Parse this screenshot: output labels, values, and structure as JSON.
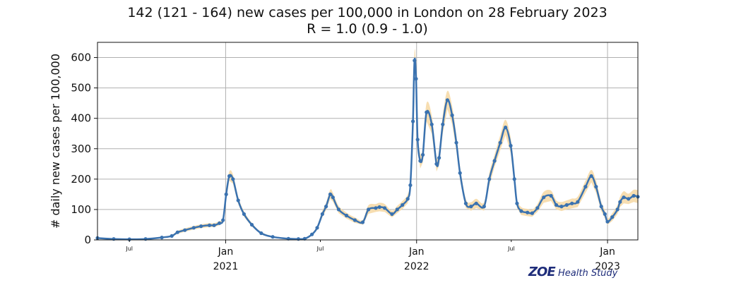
{
  "title_line1": "142 (121 - 164) new cases per 100,000 in London on 28 February 2023",
  "title_line2": "R = 1.0 (0.9 - 1.0)",
  "brand": {
    "logo_text": "ZOE",
    "suffix": "Health Study"
  },
  "colors": {
    "line": "#3a72b0",
    "ci_band": "#f6d8a3",
    "grid": "#b0b0b0"
  },
  "chart_data": {
    "type": "line",
    "xlabel": "",
    "ylabel": "# daily new cases per 100,000",
    "ylim": [
      0,
      650
    ],
    "xlim": [
      "2020-05-01",
      "2023-02-28"
    ],
    "yticks": [
      0,
      100,
      200,
      300,
      400,
      500,
      600
    ],
    "xticks_major": [
      {
        "date": "2021-01-01",
        "label": "Jan",
        "year": "2021"
      },
      {
        "date": "2022-01-01",
        "label": "Jan",
        "year": "2022"
      },
      {
        "date": "2023-01-01",
        "label": "Jan",
        "year": "2023"
      }
    ],
    "xticks_minor": [
      {
        "date": "2020-07-01",
        "label": "Jul"
      },
      {
        "date": "2021-07-01",
        "label": "Jul"
      },
      {
        "date": "2022-07-01",
        "label": "Jul"
      }
    ],
    "grid": true,
    "series": [
      {
        "x": [
          "2020-05-01",
          "2020-06-01",
          "2020-07-01",
          "2020-08-01",
          "2020-09-01",
          "2020-09-20",
          "2020-10-01",
          "2020-10-15",
          "2020-11-01",
          "2020-11-15",
          "2020-12-01",
          "2020-12-10",
          "2020-12-20",
          "2020-12-27",
          "2021-01-02",
          "2021-01-08",
          "2021-01-15",
          "2021-01-25",
          "2021-02-05",
          "2021-02-20",
          "2021-03-10",
          "2021-04-01",
          "2021-05-01",
          "2021-05-20",
          "2021-06-01",
          "2021-06-15",
          "2021-06-25",
          "2021-07-05",
          "2021-07-12",
          "2021-07-20",
          "2021-07-25",
          "2021-08-05",
          "2021-08-20",
          "2021-09-05",
          "2021-09-20",
          "2021-10-01",
          "2021-10-15",
          "2021-10-22",
          "2021-11-01",
          "2021-11-15",
          "2021-11-25",
          "2021-12-05",
          "2021-12-15",
          "2021-12-20",
          "2021-12-25",
          "2021-12-28",
          "2021-12-31",
          "2022-01-03",
          "2022-01-08",
          "2022-01-13",
          "2022-01-20",
          "2022-01-30",
          "2022-02-08",
          "2022-02-13",
          "2022-02-20",
          "2022-03-01",
          "2022-03-10",
          "2022-03-18",
          "2022-03-25",
          "2022-04-05",
          "2022-04-15",
          "2022-04-25",
          "2022-05-10",
          "2022-05-20",
          "2022-05-30",
          "2022-06-10",
          "2022-06-20",
          "2022-06-30",
          "2022-07-07",
          "2022-07-12",
          "2022-07-20",
          "2022-08-01",
          "2022-08-10",
          "2022-08-20",
          "2022-09-01",
          "2022-09-15",
          "2022-09-25",
          "2022-10-05",
          "2022-10-15",
          "2022-10-25",
          "2022-11-05",
          "2022-11-20",
          "2022-12-01",
          "2022-12-10",
          "2022-12-20",
          "2022-12-27",
          "2023-01-01",
          "2023-01-10",
          "2023-01-20",
          "2023-01-25",
          "2023-02-01",
          "2023-02-10",
          "2023-02-20",
          "2023-02-28"
        ],
        "y": [
          6,
          3,
          2,
          3,
          8,
          13,
          25,
          32,
          40,
          45,
          48,
          48,
          55,
          65,
          150,
          210,
          200,
          130,
          85,
          50,
          22,
          10,
          4,
          3,
          4,
          18,
          40,
          85,
          110,
          150,
          140,
          100,
          80,
          65,
          58,
          100,
          105,
          108,
          105,
          85,
          100,
          115,
          135,
          180,
          390,
          590,
          530,
          330,
          260,
          280,
          420,
          380,
          250,
          270,
          380,
          460,
          410,
          320,
          220,
          120,
          110,
          120,
          110,
          200,
          260,
          320,
          370,
          310,
          200,
          120,
          95,
          90,
          88,
          105,
          140,
          145,
          115,
          110,
          115,
          120,
          125,
          175,
          210,
          175,
          110,
          85,
          60,
          75,
          100,
          125,
          140,
          135,
          145,
          142
        ],
        "ci_low": [
          4,
          2,
          1,
          2,
          6,
          10,
          20,
          27,
          34,
          39,
          42,
          42,
          48,
          56,
          135,
          195,
          185,
          118,
          76,
          44,
          18,
          8,
          3,
          2,
          3,
          14,
          33,
          75,
          98,
          135,
          126,
          88,
          70,
          56,
          50,
          86,
          92,
          94,
          92,
          74,
          88,
          102,
          120,
          160,
          360,
          560,
          495,
          300,
          235,
          255,
          390,
          350,
          225,
          245,
          350,
          430,
          380,
          295,
          198,
          105,
          96,
          105,
          96,
          180,
          240,
          295,
          345,
          285,
          180,
          105,
          82,
          78,
          76,
          92,
          122,
          128,
          100,
          95,
          100,
          104,
          108,
          155,
          190,
          155,
          95,
          72,
          50,
          62,
          85,
          108,
          120,
          118,
          125,
          121
        ],
        "ci_high": [
          8,
          5,
          3,
          5,
          11,
          16,
          30,
          38,
          46,
          51,
          55,
          55,
          62,
          74,
          165,
          225,
          215,
          142,
          94,
          56,
          26,
          12,
          6,
          5,
          6,
          22,
          47,
          96,
          122,
          165,
          155,
          112,
          90,
          74,
          66,
          114,
          118,
          122,
          118,
          96,
          112,
          128,
          150,
          200,
          420,
          620,
          565,
          360,
          285,
          305,
          450,
          410,
          275,
          295,
          410,
          490,
          440,
          345,
          242,
          135,
          124,
          135,
          124,
          220,
          280,
          345,
          395,
          335,
          220,
          135,
          108,
          102,
          100,
          118,
          158,
          162,
          130,
          125,
          130,
          136,
          142,
          195,
          230,
          195,
          125,
          98,
          70,
          88,
          115,
          142,
          160,
          152,
          165,
          164
        ]
      }
    ]
  }
}
